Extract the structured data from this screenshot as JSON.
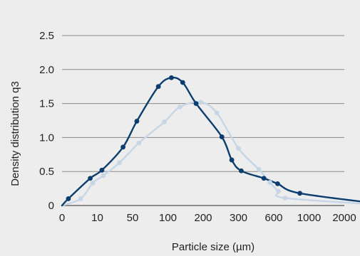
{
  "chart_data": {
    "type": "line",
    "title": "",
    "xlabel": "Particle size (µm)",
    "ylabel": "Density distribution  q3",
    "ylim": [
      0,
      2.5
    ],
    "yticks": [
      {
        "v": 0,
        "label": "0"
      },
      {
        "v": 0.5,
        "label": "0.5"
      },
      {
        "v": 1.0,
        "label": "1.0"
      },
      {
        "v": 1.5,
        "label": "1.5"
      },
      {
        "v": 2.0,
        "label": "2.0"
      },
      {
        "v": 2.5,
        "label": "2.5"
      }
    ],
    "xticks": [
      {
        "label": "0"
      },
      {
        "label": "10"
      },
      {
        "label": "50"
      },
      {
        "label": "100"
      },
      {
        "label": "200"
      },
      {
        "label": "300"
      },
      {
        "label": "600"
      },
      {
        "label": "1000"
      },
      {
        "label": "2000"
      }
    ],
    "grid": true,
    "series": [
      {
        "color": "#0b3d6e",
        "values": [
          [
            0.18,
            0.1
          ],
          [
            0.8,
            0.4
          ],
          [
            1.13,
            0.52
          ],
          [
            1.73,
            0.86
          ],
          [
            2.12,
            1.24
          ],
          [
            2.73,
            1.75
          ],
          [
            3.1,
            1.88
          ],
          [
            3.42,
            1.81
          ],
          [
            3.8,
            1.5
          ],
          [
            4.53,
            1.01
          ],
          [
            4.81,
            0.67
          ],
          [
            5.08,
            0.51
          ],
          [
            5.72,
            0.4
          ],
          [
            6.11,
            0.32
          ],
          [
            6.74,
            0.18
          ],
          [
            9.1,
            0.02
          ]
        ]
      },
      {
        "color": "#c7d6e6",
        "values": [
          [
            0.53,
            0.1
          ],
          [
            0.87,
            0.33
          ],
          [
            1.17,
            0.44
          ],
          [
            1.63,
            0.63
          ],
          [
            2.18,
            0.92
          ],
          [
            2.9,
            1.23
          ],
          [
            3.34,
            1.45
          ],
          [
            3.93,
            1.52
          ],
          [
            4.39,
            1.36
          ],
          [
            5.0,
            0.84
          ],
          [
            5.58,
            0.53
          ],
          [
            5.89,
            0.34
          ],
          [
            6.13,
            0.21
          ],
          [
            6.32,
            0.11
          ],
          [
            9.03,
            0.01
          ]
        ]
      }
    ]
  }
}
